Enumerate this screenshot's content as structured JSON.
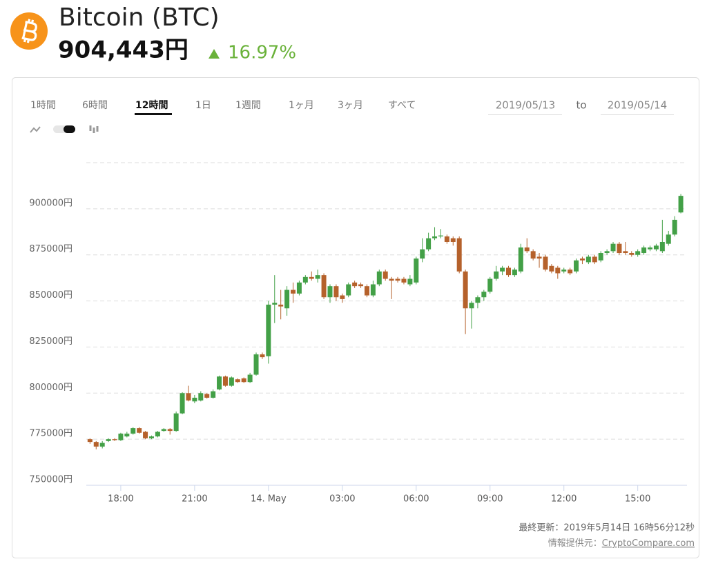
{
  "header": {
    "title": "Bitcoin (BTC)",
    "price": "904,443円",
    "change": "16.97%"
  },
  "tabs": [
    "1時間",
    "6時間",
    "12時間",
    "1日",
    "1週間",
    "1ヶ月",
    "3ヶ月",
    "すべて"
  ],
  "date_range": {
    "from": "2019/05/13",
    "separator": "to",
    "to": "2019/05/14"
  },
  "chart_data": {
    "type": "candlestick",
    "x": [
      16.75,
      17,
      17.25,
      17.5,
      17.75,
      18,
      18.25,
      18.5,
      18.75,
      19,
      19.25,
      19.5,
      19.75,
      20,
      20.25,
      20.5,
      20.75,
      21,
      21.25,
      21.5,
      21.75,
      22,
      22.25,
      22.5,
      22.75,
      23,
      23.25,
      23.5,
      23.75,
      24,
      24.25,
      24.5,
      24.75,
      25,
      25.25,
      25.5,
      25.75,
      26,
      26.25,
      26.5,
      26.75,
      27,
      27.25,
      27.5,
      27.75,
      28,
      28.25,
      28.5,
      28.75,
      29,
      29.25,
      29.5,
      29.75,
      30,
      30.25,
      30.5,
      30.75,
      31,
      31.25,
      31.5,
      31.75,
      32,
      32.25,
      32.5,
      32.75,
      33,
      33.25,
      33.5,
      33.75,
      34,
      34.25,
      34.5,
      34.75,
      35,
      35.25,
      35.5,
      35.75,
      36,
      36.25,
      36.5,
      36.75,
      37,
      37.25,
      37.5,
      37.75,
      38,
      38.25,
      38.5,
      38.75,
      39,
      39.25,
      39.5,
      39.75,
      40,
      40.25,
      40.5,
      40.75
    ],
    "open": [
      775000,
      773500,
      771000,
      774000,
      775000,
      774500,
      776500,
      778000,
      781000,
      779000,
      775500,
      776500,
      779500,
      780500,
      779500,
      789000,
      800000,
      795500,
      796000,
      799500,
      797500,
      802000,
      809000,
      804000,
      807500,
      808000,
      806000,
      810000,
      821000,
      820000,
      848000,
      848000,
      846000,
      856000,
      854000,
      860000,
      863000,
      862000,
      864000,
      852000,
      858000,
      853000,
      853000,
      860000,
      859000,
      858000,
      853000,
      859000,
      866000,
      862000,
      862000,
      862000,
      859000,
      860000,
      873000,
      878000,
      884000,
      885000,
      885000,
      884000,
      884000,
      866000,
      846000,
      849000,
      852000,
      855000,
      862000,
      866000,
      868000,
      864000,
      866000,
      879000,
      877000,
      874000,
      874000,
      869000,
      868000,
      866000,
      867000,
      866000,
      873000,
      871000,
      874000,
      872000,
      876000,
      877000,
      881000,
      877000,
      876000,
      875000,
      876000,
      878000,
      878000,
      877000,
      881000,
      886000,
      898000
    ],
    "high": [
      775500,
      774000,
      774000,
      775500,
      775500,
      778500,
      779000,
      781500,
      781500,
      779500,
      777000,
      779500,
      781000,
      781000,
      790000,
      800500,
      804000,
      799000,
      801000,
      800000,
      802000,
      809500,
      809500,
      809000,
      808000,
      808500,
      811000,
      822000,
      822000,
      850000,
      864000,
      856000,
      858000,
      860000,
      861000,
      864000,
      866000,
      867000,
      865000,
      859000,
      859000,
      854000,
      860000,
      861000,
      860000,
      859000,
      861000,
      867000,
      867000,
      863000,
      863000,
      863000,
      864000,
      874000,
      884000,
      887000,
      890000,
      889000,
      886000,
      885000,
      885000,
      867000,
      850000,
      853000,
      856000,
      863000,
      869000,
      869000,
      869000,
      868000,
      881000,
      884000,
      878000,
      876000,
      875000,
      870000,
      869000,
      868000,
      868000,
      873000,
      874000,
      875000,
      875000,
      877000,
      878000,
      882000,
      882000,
      882000,
      877000,
      878000,
      880000,
      880000,
      881000,
      894000,
      888000,
      896000,
      908000
    ],
    "low": [
      772500,
      769500,
      770000,
      773500,
      774000,
      774000,
      776000,
      777500,
      778000,
      775000,
      775000,
      776000,
      779000,
      777500,
      779000,
      788500,
      795500,
      794500,
      795500,
      797000,
      797000,
      801500,
      803500,
      803500,
      805500,
      805500,
      805500,
      809500,
      818500,
      816000,
      838000,
      840000,
      842000,
      849000,
      853000,
      859000,
      861000,
      860000,
      851000,
      849000,
      850000,
      849000,
      852000,
      857000,
      857000,
      852000,
      852000,
      858000,
      861000,
      851000,
      860000,
      859000,
      858000,
      859000,
      871000,
      877000,
      883000,
      884000,
      881000,
      880000,
      865000,
      832000,
      835000,
      846000,
      850000,
      854000,
      861000,
      864000,
      863000,
      863000,
      865000,
      876000,
      872000,
      868000,
      866000,
      865000,
      862000,
      865000,
      864000,
      865000,
      870000,
      870000,
      870000,
      871000,
      875000,
      876000,
      875000,
      875000,
      874000,
      874000,
      875000,
      877000,
      877000,
      876000,
      880000,
      885000,
      897500
    ],
    "close": [
      773500,
      771000,
      773000,
      775000,
      774500,
      778000,
      778000,
      781000,
      778500,
      775500,
      776500,
      779000,
      780500,
      779500,
      789000,
      800000,
      796000,
      797500,
      800000,
      797500,
      801000,
      809000,
      804000,
      808500,
      806000,
      806000,
      810000,
      821000,
      819500,
      848000,
      849000,
      847000,
      856000,
      854000,
      860000,
      863000,
      862000,
      864000,
      852000,
      858000,
      852000,
      851000,
      859000,
      858000,
      858000,
      853000,
      859000,
      866000,
      862000,
      861000,
      861000,
      860000,
      862000,
      873000,
      878000,
      884000,
      885000,
      885500,
      882000,
      882000,
      866000,
      846000,
      849000,
      852000,
      855000,
      862000,
      866000,
      868000,
      864000,
      867000,
      879000,
      877000,
      873000,
      873000,
      867000,
      866000,
      865000,
      867000,
      865000,
      872000,
      872000,
      874000,
      871000,
      876000,
      877000,
      881000,
      876000,
      876000,
      875000,
      877000,
      879000,
      879000,
      880000,
      882000,
      886000,
      894000,
      907000
    ],
    "up_color": "#43a047",
    "down_color": "#b5612b",
    "xlim": [
      16.6,
      41
    ],
    "xticks": [
      {
        "value": 18,
        "label": "18:00"
      },
      {
        "value": 21,
        "label": "21:00"
      },
      {
        "value": 24,
        "label": "14. May"
      },
      {
        "value": 27,
        "label": "03:00"
      },
      {
        "value": 30,
        "label": "06:00"
      },
      {
        "value": 33,
        "label": "09:00"
      },
      {
        "value": 36,
        "label": "12:00"
      },
      {
        "value": 39,
        "label": "15:00"
      }
    ],
    "ylim": [
      750000,
      925000
    ],
    "yticks": [
      {
        "value": 750000,
        "label": "750000円"
      },
      {
        "value": 775000,
        "label": "775000円"
      },
      {
        "value": 800000,
        "label": "800000円"
      },
      {
        "value": 825000,
        "label": "825000円"
      },
      {
        "value": 850000,
        "label": "850000円"
      },
      {
        "value": 875000,
        "label": "875000円"
      },
      {
        "value": 900000,
        "label": "900000円"
      }
    ],
    "grid": true
  },
  "footer": {
    "updated": "最終更新：2019年5月14日 16時56分12秒",
    "source_label": "情報提供元：",
    "source_link": "CryptoCompare.com"
  }
}
